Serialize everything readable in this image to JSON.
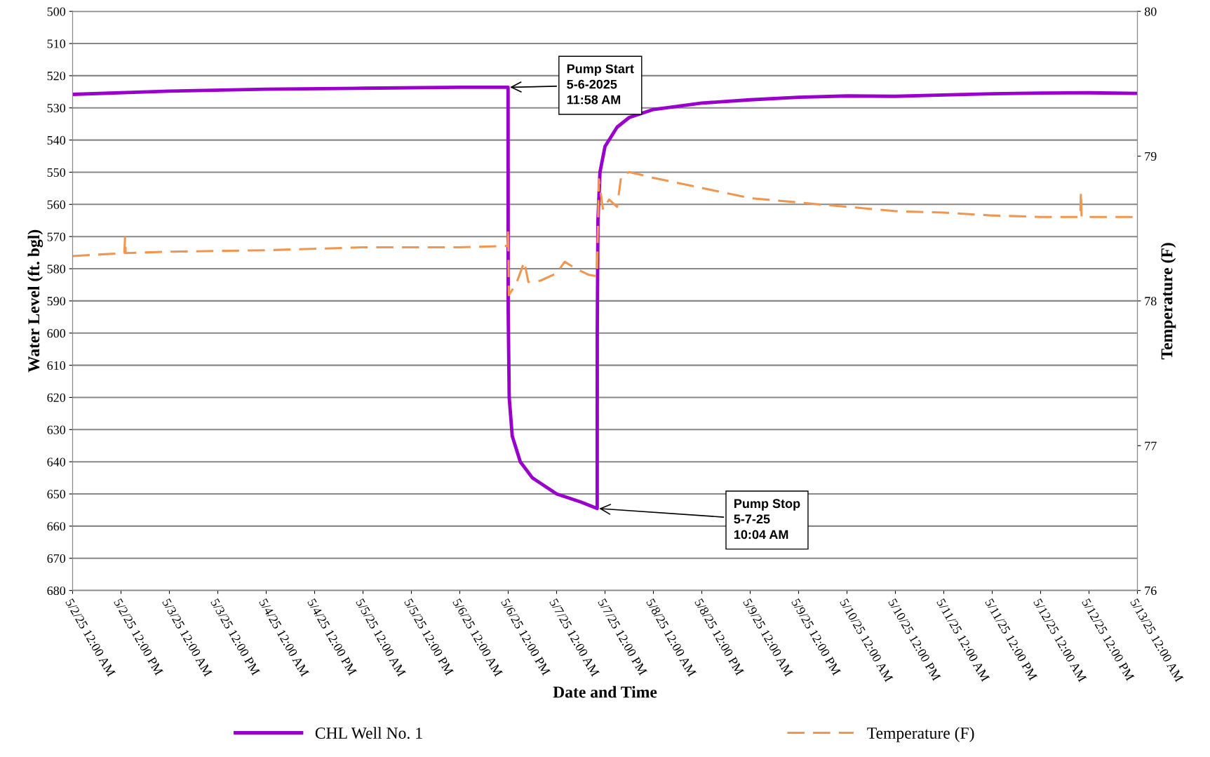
{
  "chart_data": {
    "type": "line",
    "xlabel": "Date and Time",
    "ylabel": "Water Level (ft. bgl)",
    "y2label": "Temperature (F)",
    "xlim": [
      "2025-05-02T00:00",
      "2025-05-13T00:00"
    ],
    "xticks": [
      {
        "value": "2025-05-02T00:00",
        "label": "5/2/25 12:00 AM"
      },
      {
        "value": "2025-05-02T12:00",
        "label": "5/2/25 12:00 PM"
      },
      {
        "value": "2025-05-03T00:00",
        "label": "5/3/25 12:00 AM"
      },
      {
        "value": "2025-05-03T12:00",
        "label": "5/3/25 12:00 PM"
      },
      {
        "value": "2025-05-04T00:00",
        "label": "5/4/25 12:00 AM"
      },
      {
        "value": "2025-05-04T12:00",
        "label": "5/4/25 12:00 PM"
      },
      {
        "value": "2025-05-05T00:00",
        "label": "5/5/25 12:00 AM"
      },
      {
        "value": "2025-05-05T12:00",
        "label": "5/5/25 12:00 PM"
      },
      {
        "value": "2025-05-06T00:00",
        "label": "5/6/25 12:00 AM"
      },
      {
        "value": "2025-05-06T12:00",
        "label": "5/6/25 12:00 PM"
      },
      {
        "value": "2025-05-07T00:00",
        "label": "5/7/25 12:00 AM"
      },
      {
        "value": "2025-05-07T12:00",
        "label": "5/7/25 12:00 PM"
      },
      {
        "value": "2025-05-08T00:00",
        "label": "5/8/25 12:00 AM"
      },
      {
        "value": "2025-05-08T12:00",
        "label": "5/8/25 12:00 PM"
      },
      {
        "value": "2025-05-09T00:00",
        "label": "5/9/25 12:00 AM"
      },
      {
        "value": "2025-05-09T12:00",
        "label": "5/9/25 12:00 PM"
      },
      {
        "value": "2025-05-10T00:00",
        "label": "5/10/25 12:00 AM"
      },
      {
        "value": "2025-05-10T12:00",
        "label": "5/10/25 12:00 PM"
      },
      {
        "value": "2025-05-11T00:00",
        "label": "5/11/25 12:00 AM"
      },
      {
        "value": "2025-05-11T12:00",
        "label": "5/11/25 12:00 PM"
      },
      {
        "value": "2025-05-12T00:00",
        "label": "5/12/25 12:00 AM"
      },
      {
        "value": "2025-05-12T12:00",
        "label": "5/12/25 12:00 PM"
      },
      {
        "value": "2025-05-13T00:00",
        "label": "5/13/25 12:00 AM"
      }
    ],
    "ylim": [
      680,
      500
    ],
    "yticks": [
      500,
      510,
      520,
      530,
      540,
      550,
      560,
      570,
      580,
      590,
      600,
      610,
      620,
      630,
      640,
      650,
      660,
      670,
      680
    ],
    "y2lim": [
      76,
      80
    ],
    "y2ticks": [
      76,
      77,
      78,
      79,
      80
    ],
    "grid": "y",
    "legend": "bottom",
    "series": [
      {
        "name": "CHL Well No. 1",
        "color": "#9900cc",
        "line_style": "solid",
        "x": [
          "2025-05-02T00:00",
          "2025-05-03T00:00",
          "2025-05-04T00:00",
          "2025-05-05T00:00",
          "2025-05-06T00:00",
          "2025-05-06T11:58",
          "2025-05-06T12:00",
          "2025-05-06T12:15",
          "2025-05-06T13:00",
          "2025-05-06T15:00",
          "2025-05-06T18:00",
          "2025-05-07T00:00",
          "2025-05-07T06:00",
          "2025-05-07T10:04",
          "2025-05-07T10:05",
          "2025-05-07T10:15",
          "2025-05-07T10:45",
          "2025-05-07T12:00",
          "2025-05-07T15:00",
          "2025-05-07T18:00",
          "2025-05-08T00:00",
          "2025-05-08T12:00",
          "2025-05-09T00:00",
          "2025-05-09T12:00",
          "2025-05-10T00:00",
          "2025-05-10T12:00",
          "2025-05-11T00:00",
          "2025-05-11T12:00",
          "2025-05-12T00:00",
          "2025-05-12T12:00",
          "2025-05-13T00:00"
        ],
        "values": [
          525.8,
          524.8,
          524.2,
          523.9,
          523.6,
          523.6,
          593,
          620,
          632,
          640,
          645,
          650,
          652.5,
          654.5,
          600,
          565,
          550,
          542,
          536,
          533,
          530.5,
          528.5,
          527.5,
          526.7,
          526.3,
          526.4,
          526.0,
          525.6,
          525.4,
          525.3,
          525.5
        ]
      },
      {
        "name": "Temperature (F)",
        "color": "#f0964f",
        "line_style": "dashed",
        "axis": "y2",
        "x": [
          "2025-05-02T00:00",
          "2025-05-02T12:50",
          "2025-05-02T13:00",
          "2025-05-02T13:10",
          "2025-05-03T00:00",
          "2025-05-04T00:00",
          "2025-05-05T00:00",
          "2025-05-06T00:00",
          "2025-05-06T11:50",
          "2025-05-06T11:58",
          "2025-05-06T12:10",
          "2025-05-06T14:00",
          "2025-05-06T16:00",
          "2025-05-06T17:00",
          "2025-05-06T20:00",
          "2025-05-07T00:00",
          "2025-05-07T02:00",
          "2025-05-07T05:00",
          "2025-05-07T08:00",
          "2025-05-07T10:00",
          "2025-05-07T10:30",
          "2025-05-07T11:30",
          "2025-05-07T13:00",
          "2025-05-07T15:00",
          "2025-05-07T16:00",
          "2025-05-07T18:00",
          "2025-05-08T00:00",
          "2025-05-08T12:00",
          "2025-05-09T00:00",
          "2025-05-09T12:00",
          "2025-05-10T00:00",
          "2025-05-10T12:00",
          "2025-05-11T00:00",
          "2025-05-11T12:00",
          "2025-05-12T00:00",
          "2025-05-12T09:50",
          "2025-05-12T10:00",
          "2025-05-12T10:10",
          "2025-05-13T00:00"
        ],
        "values": [
          78.31,
          78.33,
          78.44,
          78.33,
          78.34,
          78.35,
          78.37,
          78.37,
          78.38,
          78.5,
          78.04,
          78.12,
          78.27,
          78.13,
          78.14,
          78.19,
          78.27,
          78.22,
          78.18,
          78.17,
          78.84,
          78.63,
          78.7,
          78.65,
          78.86,
          78.89,
          78.85,
          78.78,
          78.71,
          78.68,
          78.65,
          78.62,
          78.61,
          78.59,
          78.58,
          78.58,
          78.75,
          78.58,
          78.58
        ]
      }
    ],
    "annotations": [
      {
        "text": "Pump Start\n5-6-2025\n11:58 AM",
        "x": "2025-05-06T11:58",
        "y": 523.6
      },
      {
        "text": "Pump Stop\n5-7-25\n10:04 AM",
        "x": "2025-05-07T10:04",
        "y": 654.5
      }
    ]
  }
}
